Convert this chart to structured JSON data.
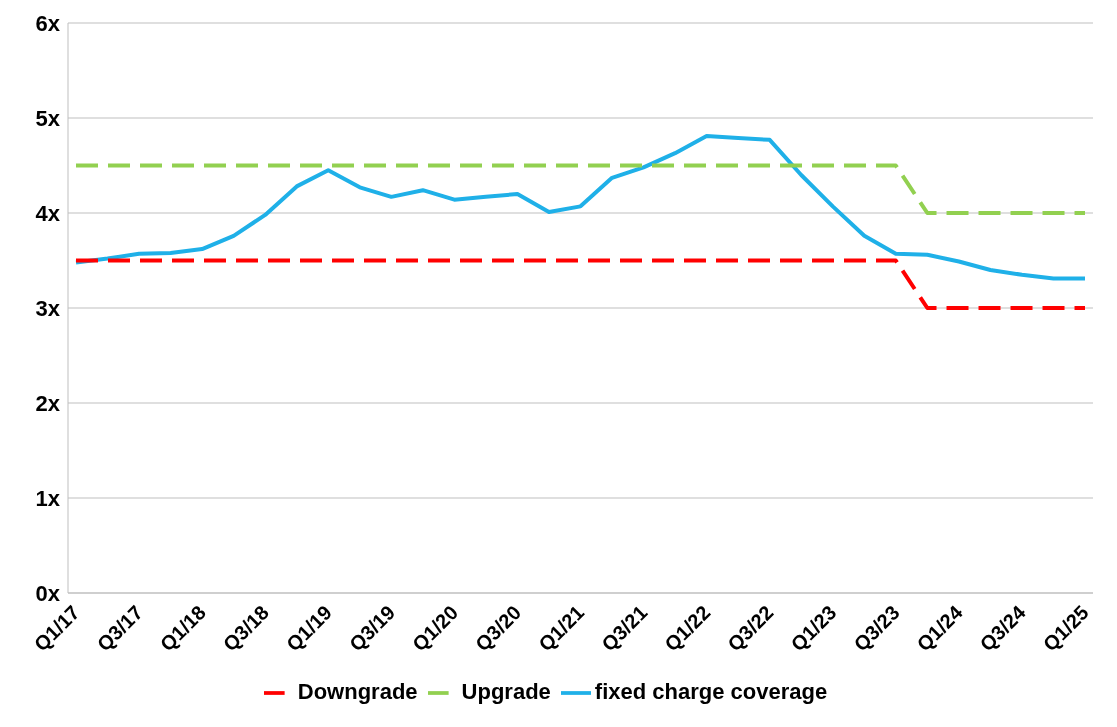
{
  "chart_data": {
    "type": "line",
    "categories": [
      "Q1/17",
      null,
      "Q3/17",
      null,
      "Q1/18",
      null,
      "Q3/18",
      null,
      "Q1/19",
      null,
      "Q3/19",
      null,
      "Q1/20",
      null,
      "Q3/20",
      null,
      "Q1/21",
      null,
      "Q3/21",
      null,
      "Q1/22",
      null,
      "Q3/22",
      null,
      "Q1/23",
      null,
      "Q3/23",
      null,
      "Q1/24",
      null,
      "Q3/24",
      null,
      "Q1/25"
    ],
    "series": [
      {
        "name": "fixed charge coverage",
        "color": "#1fb0e8",
        "line_style": "solid",
        "values": [
          3.48,
          3.52,
          3.57,
          3.58,
          3.62,
          3.76,
          3.98,
          4.28,
          4.45,
          4.27,
          4.17,
          4.24,
          4.14,
          4.17,
          4.2,
          4.01,
          4.07,
          4.37,
          4.48,
          4.63,
          4.81,
          4.79,
          4.77,
          4.4,
          4.07,
          3.76,
          3.57,
          3.56,
          3.49,
          3.4,
          3.35,
          3.31,
          3.31
        ]
      },
      {
        "name": "Upgrade",
        "color": "#92d050",
        "line_style": "dashed",
        "values": [
          4.5,
          4.5,
          4.5,
          4.5,
          4.5,
          4.5,
          4.5,
          4.5,
          4.5,
          4.5,
          4.5,
          4.5,
          4.5,
          4.5,
          4.5,
          4.5,
          4.5,
          4.5,
          4.5,
          4.5,
          4.5,
          4.5,
          4.5,
          4.5,
          4.5,
          4.5,
          4.5,
          4,
          4,
          4,
          4,
          4,
          4
        ]
      },
      {
        "name": "Downgrade",
        "color": "#ff0000",
        "line_style": "dashed",
        "values": [
          3.5,
          3.5,
          3.5,
          3.5,
          3.5,
          3.5,
          3.5,
          3.5,
          3.5,
          3.5,
          3.5,
          3.5,
          3.5,
          3.5,
          3.5,
          3.5,
          3.5,
          3.5,
          3.5,
          3.5,
          3.5,
          3.5,
          3.5,
          3.5,
          3.5,
          3.5,
          3.5,
          3,
          3,
          3,
          3,
          3,
          3
        ]
      }
    ],
    "ylim": [
      0,
      6
    ],
    "yticks": [
      {
        "value": 0,
        "label": "0x"
      },
      {
        "value": 1,
        "label": "1x"
      },
      {
        "value": 2,
        "label": "2x"
      },
      {
        "value": 3,
        "label": "3x"
      },
      {
        "value": 4,
        "label": "4x"
      },
      {
        "value": 5,
        "label": "5x"
      },
      {
        "value": 6,
        "label": "6x"
      }
    ],
    "grid": "y",
    "legend": "bottom"
  }
}
